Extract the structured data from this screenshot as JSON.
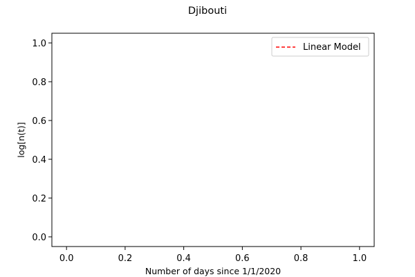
{
  "chart_data": {
    "type": "line",
    "title": "Djibouti",
    "xlabel": "Number of days since 1/1/2020",
    "ylabel": "log[n(t)]",
    "xlim": [
      -0.05,
      1.05
    ],
    "ylim": [
      -0.05,
      1.05
    ],
    "xticks": [
      0.0,
      0.2,
      0.4,
      0.6,
      0.8,
      1.0
    ],
    "yticks": [
      0.0,
      0.2,
      0.4,
      0.6,
      0.8,
      1.0
    ],
    "xtick_labels": [
      "0.0",
      "0.2",
      "0.4",
      "0.6",
      "0.8",
      "1.0"
    ],
    "ytick_labels": [
      "0.0",
      "0.2",
      "0.4",
      "0.6",
      "0.8",
      "1.0"
    ],
    "grid": false,
    "legend_position": "top-right",
    "series": [
      {
        "name": "Linear Model",
        "color": "#ff0000",
        "linestyle": "dashed",
        "x": [],
        "y": []
      }
    ]
  }
}
